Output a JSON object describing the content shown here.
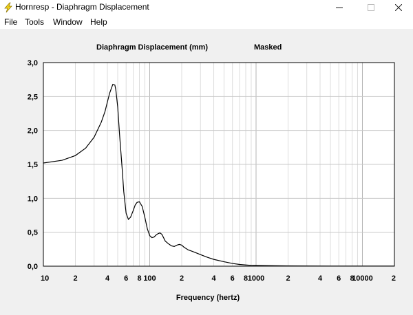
{
  "window": {
    "title": "Hornresp - Diaphragm Displacement",
    "icon": "lightning-bolt-icon"
  },
  "menu": {
    "items": [
      {
        "label": "File"
      },
      {
        "label": "Tools"
      },
      {
        "label": "Window"
      },
      {
        "label": "Help"
      }
    ]
  },
  "chart_data": {
    "type": "line",
    "title": "Diaphragm Displacement (mm)",
    "title_note": "Masked",
    "xlabel": "Frequency (hertz)",
    "ylabel": "",
    "xscale": "log",
    "xlim": [
      10,
      20000
    ],
    "ylim": [
      0,
      3
    ],
    "grid": true,
    "x_tick_labels": [
      "10",
      "2",
      "4",
      "6",
      "8",
      "100",
      "2",
      "4",
      "6",
      "8",
      "1000",
      "2",
      "4",
      "6",
      "8",
      "10000",
      "2"
    ],
    "y_tick_labels": [
      "0,0",
      "0,5",
      "1,0",
      "1,5",
      "2,0",
      "2,5",
      "3,0"
    ],
    "line_color": "#000000",
    "series": [
      {
        "x": [
          10,
          15,
          20,
          25,
          30,
          35,
          38,
          40,
          42,
          45,
          47,
          48,
          50,
          52,
          55,
          57,
          60,
          63,
          66,
          70,
          73,
          76,
          80,
          85,
          90,
          95,
          100,
          105,
          110,
          115,
          120,
          125,
          130,
          135,
          140,
          150,
          160,
          170,
          180,
          190,
          200,
          210,
          220,
          230,
          240,
          250,
          270,
          300,
          350,
          400,
          500,
          600,
          700,
          800,
          900,
          1000,
          1500,
          2000,
          3000,
          5000,
          10000,
          20000
        ],
        "y": [
          1.52,
          1.56,
          1.63,
          1.74,
          1.9,
          2.12,
          2.28,
          2.42,
          2.55,
          2.68,
          2.67,
          2.6,
          2.35,
          1.95,
          1.45,
          1.1,
          0.78,
          0.69,
          0.72,
          0.82,
          0.9,
          0.94,
          0.95,
          0.88,
          0.72,
          0.55,
          0.45,
          0.42,
          0.43,
          0.46,
          0.48,
          0.49,
          0.47,
          0.42,
          0.37,
          0.33,
          0.3,
          0.29,
          0.31,
          0.32,
          0.31,
          0.28,
          0.26,
          0.24,
          0.23,
          0.22,
          0.2,
          0.17,
          0.13,
          0.1,
          0.065,
          0.04,
          0.025,
          0.018,
          0.012,
          0.01,
          0.006,
          0.004,
          0.003,
          0.002,
          0.002,
          0.002
        ]
      }
    ]
  }
}
